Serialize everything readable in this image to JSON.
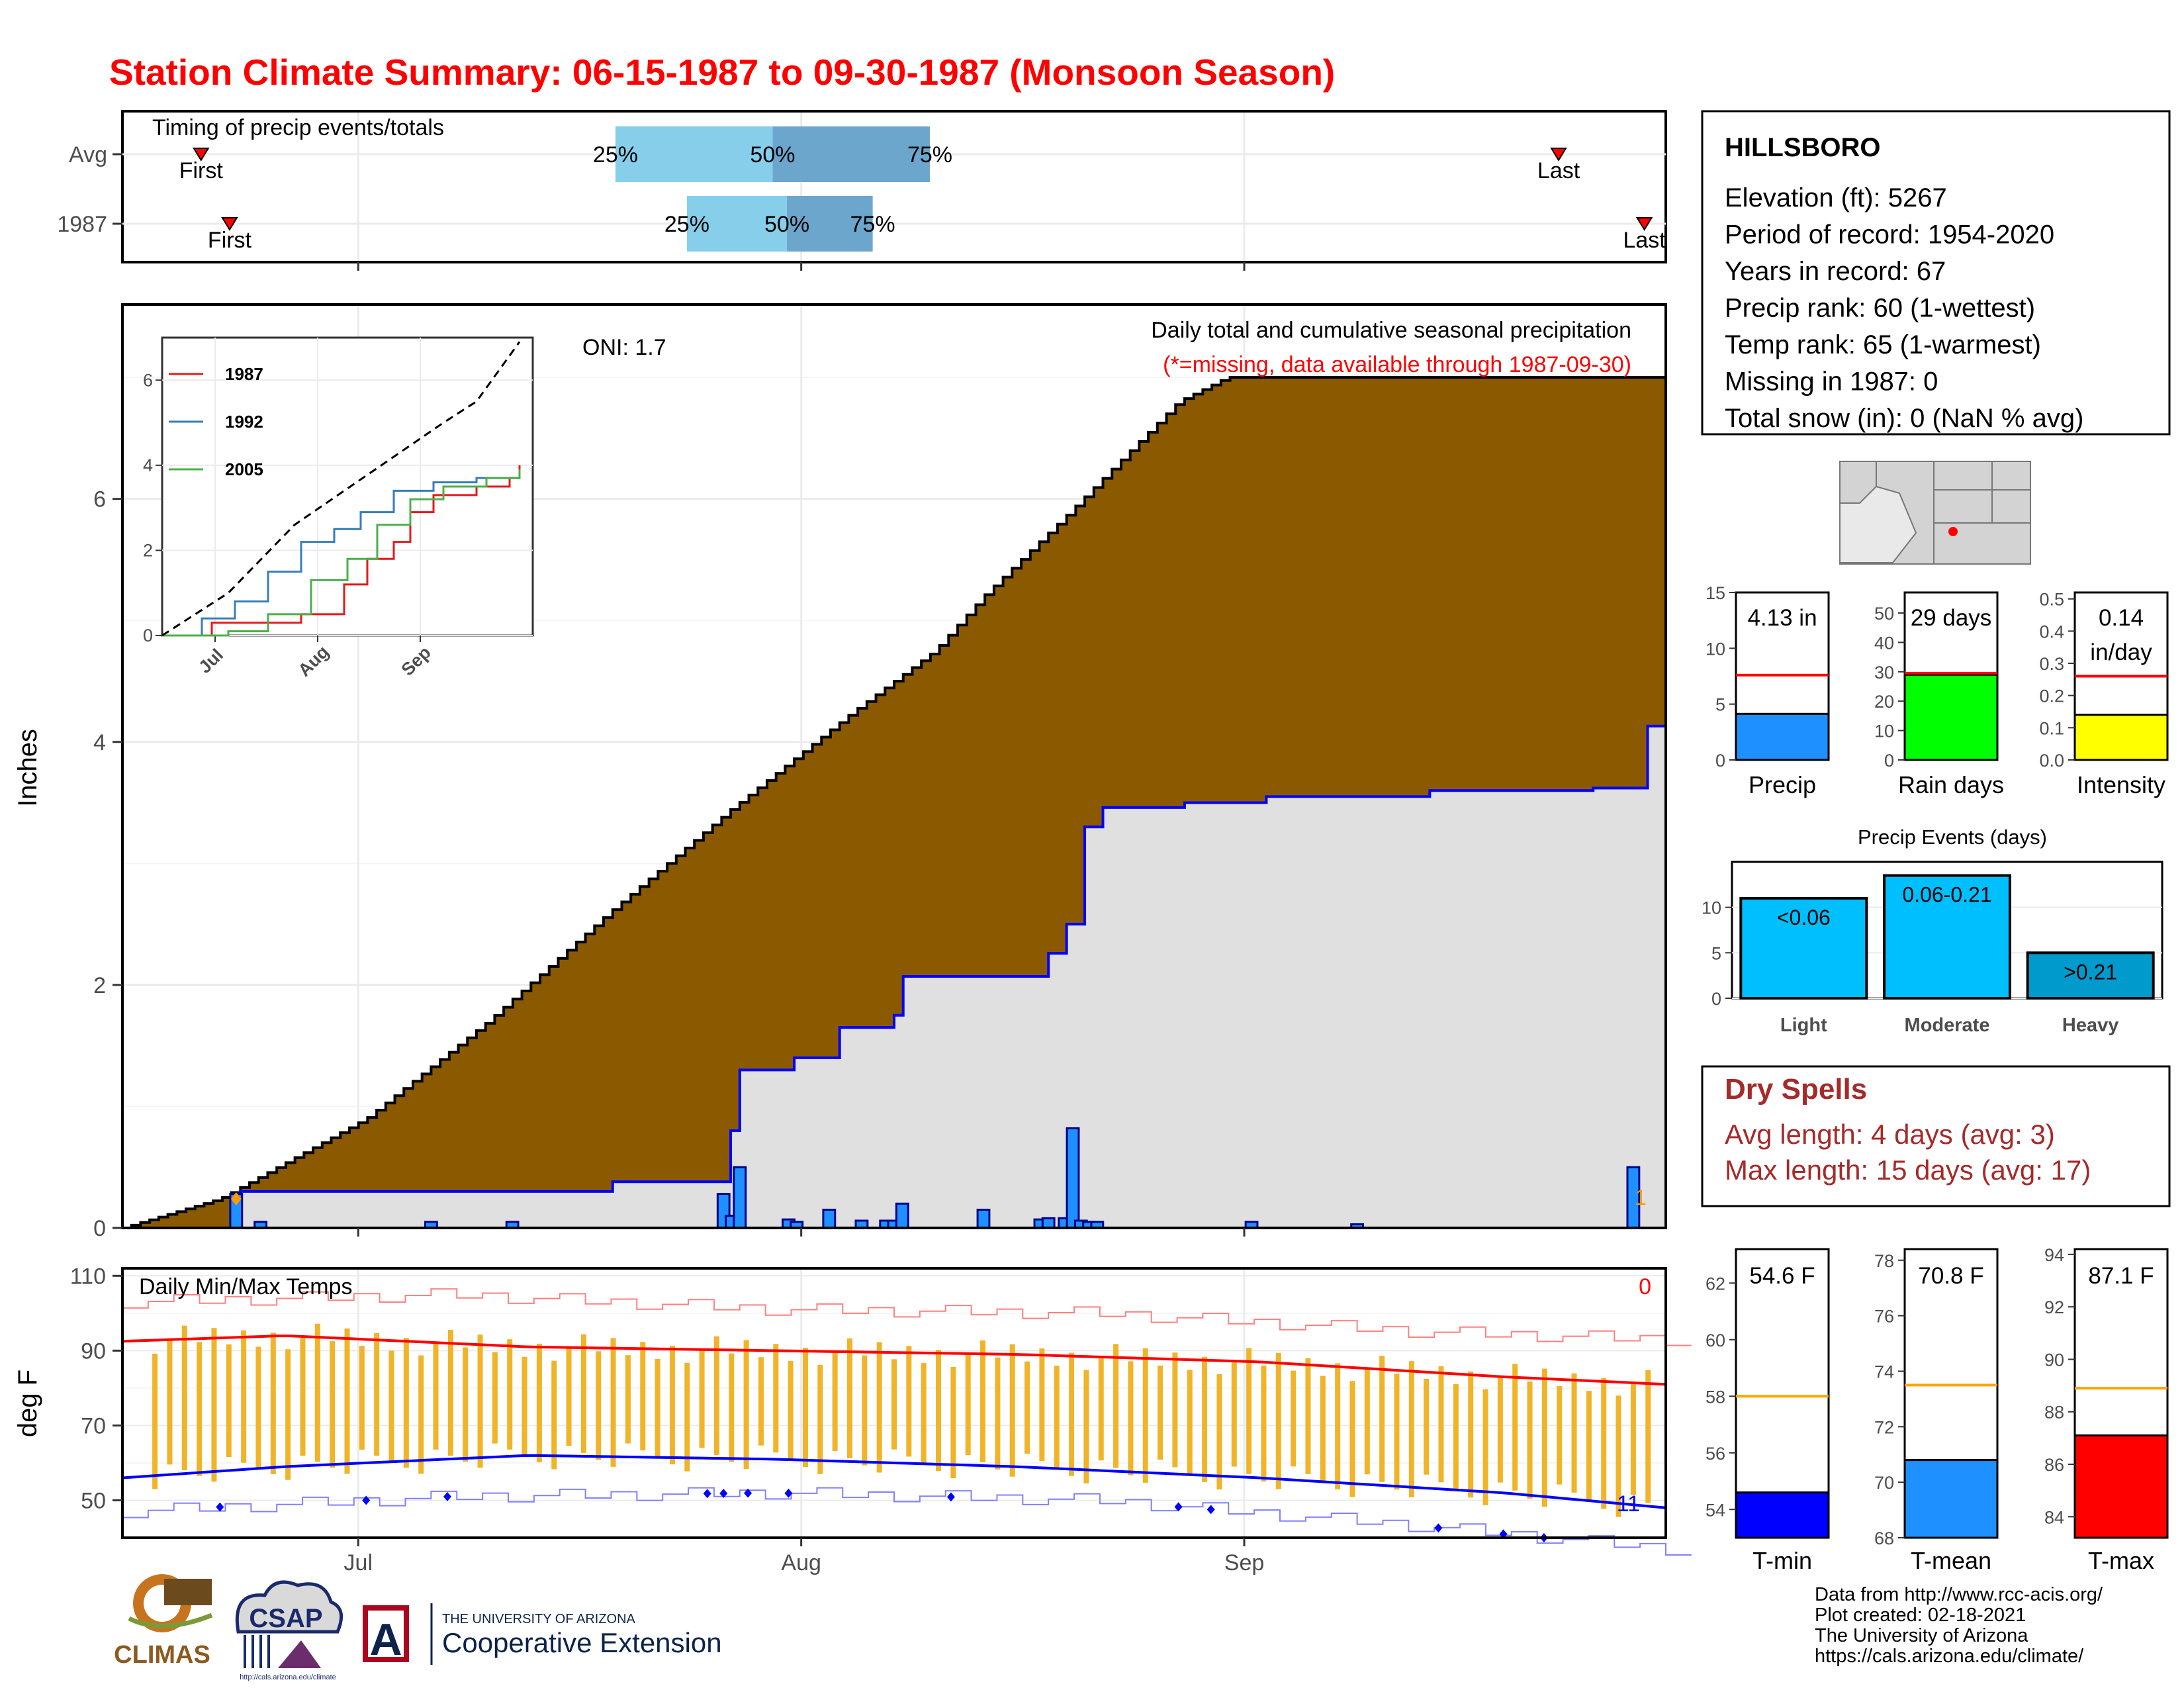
{
  "title": "Station Climate Summary: 06-15-1987 to 09-30-1987 (Monsoon Season)",
  "colors": {
    "title": "#ff0000",
    "cum_avg": "#8b5a00",
    "cum_year": "#e0e0e0",
    "daily_bar": "#1e90ff",
    "line_blue": "#0000ff",
    "temp_bar": "#f0b429",
    "max_line": "#ff0000",
    "min_line": "#0000ff",
    "dry_spell_text": "#a52a2a",
    "timing_light": "#87ceeb",
    "timing_dark": "#6ca6cd"
  },
  "timing_panel": {
    "title": "Timing of precip events/totals",
    "rows": [
      {
        "label": "Avg",
        "first_date": "06-20",
        "last_date": "09-23",
        "p25_date": "07-19",
        "p50_date": "07-30",
        "p75_date": "08-10",
        "first_label": "First",
        "last_label": "Last",
        "p25_label": "25%",
        "p50_label": "50%",
        "p75_label": "75%"
      },
      {
        "label": "1987",
        "first_date": "06-22",
        "last_date": "09-29",
        "p25_date": "07-24",
        "p50_date": "07-31",
        "p75_date": "08-06",
        "first_label": "First",
        "last_label": "Last",
        "p25_label": "25%",
        "p50_label": "50%",
        "p75_label": "75%"
      }
    ]
  },
  "precip_panel": {
    "ylabel": "Inches",
    "oni_label": "ONI: 1.7",
    "header_line1": "Daily total and cumulative seasonal precipitation",
    "header_line2": "(*=missing, data available through 1987-09-30)",
    "missing_count": "1"
  },
  "inset": {
    "legend": [
      "1987",
      "1992",
      "2005"
    ],
    "series_colors": [
      "#e41a1c",
      "#377eb8",
      "#4daf4a"
    ]
  },
  "temp_panel": {
    "ylabel": "deg F",
    "title": "Daily Min/Max Temps",
    "record_high_count": "0",
    "record_low_count": "11"
  },
  "x_axis": {
    "months": [
      "Jul",
      "Aug",
      "Sep"
    ]
  },
  "station": {
    "name": "HILLSBORO",
    "lines": [
      "Elevation (ft): 5267",
      "Period of record: 1954-2020",
      "Years in record: 67",
      "Precip rank: 60 (1-wettest)",
      "Temp rank: 65 (1-warmest)",
      "Missing in 1987: 0",
      "Total snow (in): 0 (NaN % avg)"
    ]
  },
  "summary_bars": [
    {
      "name": "Precip",
      "value": 4.13,
      "avg": 7.6,
      "label": "4.13 in",
      "ticks": [
        "0",
        "5",
        "10",
        "15"
      ],
      "ymin": 0,
      "ymax": 15,
      "color": "#1e90ff"
    },
    {
      "name": "Rain days",
      "value": 29,
      "avg": 29.5,
      "label": "29 days",
      "ticks": [
        "0",
        "10",
        "20",
        "30",
        "40",
        "50"
      ],
      "ymin": 0,
      "ymax": 57,
      "color": "#00ff00"
    },
    {
      "name": "Intensity",
      "value": 0.14,
      "avg": 0.26,
      "label": "0.14\nin/day",
      "ticks": [
        "0.0",
        "0.1",
        "0.2",
        "0.3",
        "0.4",
        "0.5"
      ],
      "ymin": 0,
      "ymax": 0.52,
      "color": "#ffff00"
    }
  ],
  "precip_events": {
    "title": "Precip Events (days)",
    "categories": [
      "Light",
      "Moderate",
      "Heavy"
    ],
    "bar_labels": [
      "<0.06",
      "0.06-0.21",
      ">0.21"
    ],
    "values": [
      11,
      13.5,
      5
    ],
    "ticks": [
      "0",
      "5",
      "10"
    ],
    "colors": [
      "#00bfff",
      "#00bfff",
      "#009acd"
    ]
  },
  "dry_spells": {
    "title": "Dry Spells",
    "avg_line": "Avg length: 4 days (avg: 3)",
    "max_line": "Max length: 15 days (avg: 17)"
  },
  "temp_bars": [
    {
      "name": "T-min",
      "value": 54.6,
      "avg": 58.0,
      "label": "54.6 F",
      "ticks": [
        "54",
        "56",
        "58",
        "60",
        "62"
      ],
      "tick_values": [
        54,
        56,
        58,
        60,
        62
      ],
      "ymin": 53.0,
      "ymax": 63.2,
      "color": "#0000ff"
    },
    {
      "name": "T-mean",
      "value": 70.8,
      "avg": 73.5,
      "label": "70.8 F",
      "ticks": [
        "68",
        "70",
        "72",
        "74",
        "76",
        "78"
      ],
      "tick_values": [
        68,
        70,
        72,
        74,
        76,
        78
      ],
      "ymin": 68.0,
      "ymax": 78.4,
      "color": "#1e90ff"
    },
    {
      "name": "T-max",
      "value": 87.1,
      "avg": 88.9,
      "label": "87.1 F",
      "ticks": [
        "84",
        "86",
        "88",
        "90",
        "92",
        "94"
      ],
      "tick_values": [
        84,
        86,
        88,
        90,
        92,
        94
      ],
      "ymin": 83.2,
      "ymax": 94.2,
      "color": "#ff0000"
    }
  ],
  "footer": {
    "lines": [
      "Data from http://www.rcc-acis.org/",
      "Plot created: 02-18-2021",
      "The University of Arizona",
      "https://cals.arizona.edu/climate/"
    ],
    "logo_climas": "CLIMAS",
    "logo_csap": "CSAP",
    "logo_csap_url": "http://cals.arizona.edu/climate",
    "logo_ua_top": "THE UNIVERSITY OF ARIZONA",
    "logo_ua_bottom": "Cooperative Extension",
    "logo_ua_letter": "A"
  },
  "chart_data": [
    {
      "type": "area",
      "title": "Daily total and cumulative seasonal precipitation",
      "ylabel": "Inches",
      "xlabel": "",
      "x_start": "1987-06-15",
      "x_end": "1987-09-30",
      "ylim": [
        0,
        7.6
      ],
      "series": [
        {
          "name": "Average cumulative",
          "values": [
            [
              0,
              0.0
            ],
            [
              12,
              0.24
            ],
            [
              30,
              0.9
            ],
            [
              45,
              1.7
            ],
            [
              60,
              2.6
            ],
            [
              75,
              3.45
            ],
            [
              90,
              4.25
            ],
            [
              100,
              4.75
            ],
            [
              106,
              5.2
            ],
            [
              116,
              5.85
            ],
            [
              130,
              6.8
            ],
            [
              136,
              7.0
            ]
          ]
        },
        {
          "name": "1987 cumulative",
          "values": [
            [
              0,
              0.0
            ],
            [
              14,
              0.3
            ],
            [
              60,
              0.38
            ],
            [
              74,
              0.8
            ],
            [
              75,
              1.3
            ],
            [
              80,
              1.3
            ],
            [
              82,
              1.4
            ],
            [
              88,
              1.65
            ],
            [
              94,
              1.75
            ],
            [
              96,
              2.07
            ],
            [
              107,
              2.07
            ],
            [
              114,
              2.26
            ],
            [
              116,
              2.5
            ],
            [
              118,
              3.3
            ],
            [
              120,
              3.46
            ],
            [
              130,
              3.5
            ],
            [
              140,
              3.55
            ],
            [
              160,
              3.6
            ],
            [
              180,
              3.62
            ],
            [
              186,
              3.62
            ],
            [
              187,
              4.13
            ],
            [
              190,
              4.13
            ]
          ]
        }
      ],
      "daily_values": [
        [
          14,
          0.28
        ],
        [
          17,
          0.05
        ],
        [
          38,
          0.05
        ],
        [
          48,
          0.05
        ],
        [
          74,
          0.28
        ],
        [
          75,
          0.1
        ],
        [
          76,
          0.5
        ],
        [
          82,
          0.07
        ],
        [
          83,
          0.05
        ],
        [
          87,
          0.15
        ],
        [
          91,
          0.06
        ],
        [
          94,
          0.06
        ],
        [
          95,
          0.06
        ],
        [
          96,
          0.2
        ],
        [
          106,
          0.15
        ],
        [
          113,
          0.07
        ],
        [
          114,
          0.08
        ],
        [
          116,
          0.08
        ],
        [
          117,
          0.82
        ],
        [
          118,
          0.06
        ],
        [
          119,
          0.05
        ],
        [
          120,
          0.05
        ],
        [
          139,
          0.05
        ],
        [
          152,
          0.03
        ],
        [
          186,
          0.5
        ]
      ]
    },
    {
      "type": "line",
      "title": "",
      "xlabel": "",
      "ylabel": "",
      "x_ticks": [
        "Jul",
        "Aug",
        "Sep"
      ],
      "ylim": [
        0,
        7
      ],
      "series": [
        {
          "name": "1987",
          "values": [
            [
              0,
              0
            ],
            [
              15,
              0.3
            ],
            [
              30,
              0.3
            ],
            [
              42,
              0.5
            ],
            [
              55,
              1.2
            ],
            [
              62,
              1.8
            ],
            [
              70,
              2.2
            ],
            [
              75,
              2.9
            ],
            [
              82,
              3.3
            ],
            [
              95,
              3.5
            ],
            [
              105,
              3.7
            ],
            [
              108,
              4.0
            ]
          ]
        },
        {
          "name": "1992",
          "values": [
            [
              0,
              0
            ],
            [
              12,
              0.4
            ],
            [
              22,
              0.8
            ],
            [
              32,
              1.5
            ],
            [
              42,
              2.2
            ],
            [
              52,
              2.5
            ],
            [
              60,
              2.9
            ],
            [
              70,
              3.4
            ],
            [
              82,
              3.6
            ],
            [
              95,
              3.7
            ],
            [
              108,
              3.8
            ]
          ]
        },
        {
          "name": "2005",
          "values": [
            [
              0,
              0
            ],
            [
              20,
              0.1
            ],
            [
              32,
              0.5
            ],
            [
              45,
              1.3
            ],
            [
              56,
              1.8
            ],
            [
              65,
              2.6
            ],
            [
              75,
              3.2
            ],
            [
              85,
              3.5
            ],
            [
              98,
              3.7
            ],
            [
              108,
              3.9
            ]
          ]
        },
        {
          "name": "Average",
          "values": [
            [
              0,
              0
            ],
            [
              20,
              1.0
            ],
            [
              40,
              2.6
            ],
            [
              55,
              3.4
            ],
            [
              70,
              4.2
            ],
            [
              85,
              5.0
            ],
            [
              95,
              5.5
            ],
            [
              108,
              6.9
            ]
          ]
        }
      ]
    },
    {
      "type": "bar",
      "title": "Daily Min/Max Temps",
      "ylabel": "deg F",
      "xlabel": "",
      "ylim": [
        40,
        110
      ],
      "y_ticks": [
        50,
        70,
        90,
        110
      ],
      "x_start": "1987-06-15",
      "x_end": "1987-09-30",
      "avg_max_line": [
        [
          0,
          92.5
        ],
        [
          20,
          94
        ],
        [
          50,
          91
        ],
        [
          80,
          90
        ],
        [
          110,
          89
        ],
        [
          140,
          87
        ],
        [
          170,
          83
        ],
        [
          190,
          81
        ]
      ],
      "avg_min_line": [
        [
          0,
          56
        ],
        [
          20,
          59
        ],
        [
          50,
          62
        ],
        [
          80,
          61
        ],
        [
          110,
          59
        ],
        [
          140,
          56
        ],
        [
          170,
          52
        ],
        [
          190,
          48
        ]
      ],
      "record_max_line": [
        [
          0,
          103
        ],
        [
          40,
          105
        ],
        [
          80,
          101
        ],
        [
          120,
          100
        ],
        [
          160,
          95
        ],
        [
          190,
          93
        ]
      ],
      "record_min_line": [
        [
          0,
          47
        ],
        [
          40,
          51
        ],
        [
          80,
          52
        ],
        [
          120,
          50
        ],
        [
          160,
          43
        ],
        [
          190,
          37
        ]
      ]
    }
  ]
}
